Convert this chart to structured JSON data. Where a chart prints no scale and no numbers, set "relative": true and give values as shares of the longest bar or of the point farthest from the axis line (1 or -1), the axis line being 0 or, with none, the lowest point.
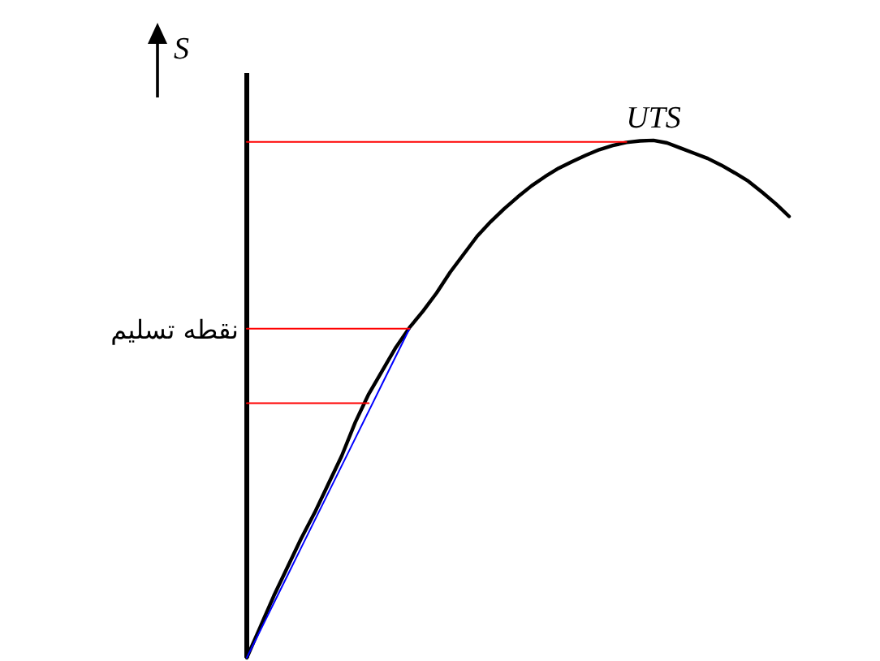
{
  "chart_data": {
    "type": "line",
    "relative": true,
    "ylabel": "S",
    "line_style": "solid",
    "marker": "none",
    "categories": [
      null,
      null,
      null,
      null,
      null,
      null,
      null,
      null,
      null,
      null,
      null,
      null,
      null,
      null,
      null,
      null,
      null,
      null,
      null,
      null,
      null,
      null,
      null,
      null,
      null,
      null,
      null,
      null,
      null,
      null,
      null,
      null,
      null,
      null,
      null,
      null,
      null,
      null,
      null,
      null,
      null
    ],
    "series": [
      {
        "color": "#000000",
        "values": [
          0,
          0.06,
          0.12,
          0.175,
          0.23,
          0.28,
          0.335,
          0.39,
          0.455,
          0.51,
          0.555,
          0.6,
          0.638,
          0.67,
          0.705,
          0.745,
          0.78,
          0.815,
          0.843,
          0.868,
          0.891,
          0.912,
          0.93,
          0.946,
          0.959,
          0.971,
          0.982,
          0.99,
          0.996,
          0.999,
          1,
          0.995,
          0.985,
          0.975,
          0.965,
          0.952,
          0.937,
          0.921,
          0.9,
          0.878,
          0.853
        ]
      },
      {
        "color": "#0000ff",
        "values": [
          0,
          0.053,
          0.106,
          0.159,
          0.212,
          0.265,
          0.318,
          0.371,
          0.424,
          0.477,
          0.53,
          0.583,
          0.636,
          null,
          null,
          null,
          null,
          null,
          null,
          null,
          null,
          null,
          null,
          null,
          null,
          null,
          null,
          null,
          null,
          null,
          null,
          null,
          null,
          null,
          null,
          null,
          null,
          null,
          null,
          null,
          null
        ]
      },
      {
        "color": "#ff0000",
        "values": [
          0.997,
          0.997,
          0.997,
          0.997,
          0.997,
          0.997,
          0.997,
          0.997,
          0.997,
          0.997,
          0.997,
          0.997,
          0.997,
          0.997,
          0.997,
          0.997,
          0.997,
          0.997,
          0.997,
          0.997,
          0.997,
          0.997,
          0.997,
          0.997,
          0.997,
          0.997,
          0.997,
          0.997,
          0.997,
          null,
          null,
          null,
          null,
          null,
          null,
          null,
          null,
          null,
          null,
          null,
          null
        ]
      },
      {
        "color": "#ff0000",
        "values": [
          0.636,
          0.636,
          0.636,
          0.636,
          0.636,
          0.636,
          0.636,
          0.636,
          0.636,
          0.636,
          0.636,
          0.636,
          0.636,
          null,
          null,
          null,
          null,
          null,
          null,
          null,
          null,
          null,
          null,
          null,
          null,
          null,
          null,
          null,
          null,
          null,
          null,
          null,
          null,
          null,
          null,
          null,
          null,
          null,
          null,
          null,
          null
        ]
      },
      {
        "color": "#ff0000",
        "values": [
          0.492,
          0.492,
          0.492,
          0.492,
          0.492,
          0.492,
          0.492,
          0.492,
          0.492,
          0.492,
          null,
          null,
          null,
          null,
          null,
          null,
          null,
          null,
          null,
          null,
          null,
          null,
          null,
          null,
          null,
          null,
          null,
          null,
          null,
          null,
          null,
          null,
          null,
          null,
          null,
          null,
          null,
          null,
          null,
          null,
          null
        ]
      }
    ],
    "annotations": [
      {
        "text": "UTS",
        "y": 1
      },
      "نقطه تسلیم"
    ]
  }
}
